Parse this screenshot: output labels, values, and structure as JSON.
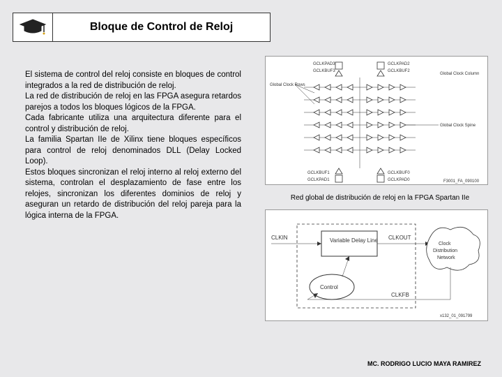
{
  "header": {
    "title": "Bloque de Control de Reloj"
  },
  "body": {
    "p1": "El sistema de control del reloj consiste en bloques de control integrados a la red de distribución de reloj.",
    "p2": "La red de distribución de reloj en las FPGA asegura retardos parejos a todos los bloques lógicos de la FPGA.",
    "p3": "Cada fabricante utiliza una arquitectura diferente para el control y distribución de reloj.",
    "p4": "La familia Spartan IIe de Xilinx tiene bloques específicos para control de reloj denominados DLL (Delay Locked Loop).",
    "p5": "Estos bloques sincronizan el reloj interno al reloj externo del sistema, controlan el desplazamiento de fase entre los relojes, sincronizan los diferentes dominios de reloj y aseguran un retardo de distribución del reloj pareja para la lógica interna de la FPGA."
  },
  "diagram_top": {
    "labels": {
      "gclkpad3": "GCLKPAD3",
      "gclkpad2": "GCLKPAD2",
      "gclkbuf3": "GCLKBUF3",
      "gclkbuf2": "GCLKBUF2",
      "gcc": "Global Clock Column",
      "gclkrows": "Global Clock Rows",
      "gcs": "Global Clock Spine",
      "gclkbuf1": "GCLKBUF1",
      "gclkpad1": "GCLKPAD1",
      "gclkbuf0": "GCLKBUF0",
      "gclkpad0": "GCLKPAD0",
      "ref": "F3001_FA_090100"
    },
    "grid_rows": 6,
    "buf_per_side": 4,
    "colors": {
      "bg": "#ffffff",
      "stroke": "#333333"
    }
  },
  "caption": "Red global de distribución de reloj en la FPGA Spartan IIe",
  "diagram_bottom": {
    "labels": {
      "clkin": "CLKIN",
      "vdl": "Variable Delay Line",
      "clkout": "CLKOUT",
      "cdn": "Clock Distribution Network",
      "control": "Control",
      "clkfb": "CLKFB",
      "ref": "x132_01_091799"
    },
    "colors": {
      "bg": "#ffffff",
      "stroke": "#333333"
    }
  },
  "footer": "MC. RODRIGO LUCIO MAYA RAMIREZ",
  "theme": {
    "page_bg": "#e8e8ea",
    "box_bg": "#ffffff",
    "box_border": "#333333",
    "text_color": "#000000"
  }
}
